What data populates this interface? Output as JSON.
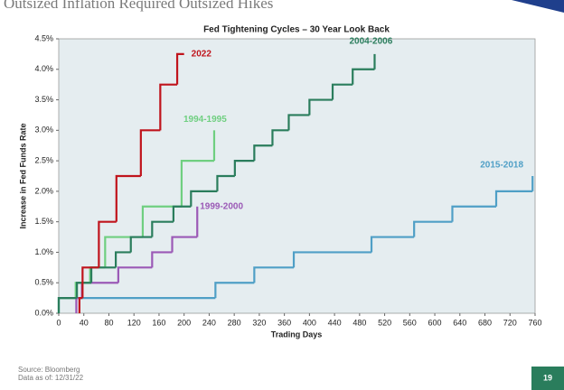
{
  "header": {
    "title": "Outsized Inflation Required Outsized Hikes"
  },
  "footer": {
    "source": "Source: Bloomberg",
    "date": "Data as of: 12/31/22",
    "page": "19"
  },
  "chart_data": {
    "type": "line",
    "step": true,
    "title": "Fed Tightening Cycles – 30 Year Look Back",
    "xlabel": "Trading Days",
    "ylabel": "Increase in Fed Funds Rate",
    "xlim": [
      0,
      760
    ],
    "xticks": [
      0,
      40,
      80,
      120,
      160,
      200,
      240,
      280,
      320,
      360,
      400,
      440,
      480,
      520,
      560,
      600,
      640,
      680,
      720,
      760
    ],
    "ylim": [
      0,
      4.5
    ],
    "yticks": [
      {
        "value": 0,
        "label": "0.0%"
      },
      {
        "value": 0.5,
        "label": "0.5%"
      },
      {
        "value": 1,
        "label": "1.0%"
      },
      {
        "value": 1.5,
        "label": "1.5%"
      },
      {
        "value": 2,
        "label": "2.0%"
      },
      {
        "value": 2.5,
        "label": "2.5%"
      },
      {
        "value": 3,
        "label": "3.0%"
      },
      {
        "value": 3.5,
        "label": "3.5%"
      },
      {
        "value": 4,
        "label": "4.0%"
      },
      {
        "value": 4.5,
        "label": "4.5%"
      }
    ],
    "grid": false,
    "series": [
      {
        "name": "2015-2018",
        "color": "#4f9fc6",
        "x": [
          0,
          250,
          312,
          375,
          499,
          567,
          628,
          698,
          756
        ],
        "values": [
          0.25,
          0.5,
          0.75,
          1.0,
          1.25,
          1.5,
          1.75,
          2.0,
          2.25
        ]
      },
      {
        "name": "1999-2000",
        "color": "#9b59b6",
        "x": [
          28,
          37,
          95,
          149,
          181,
          221
        ],
        "values": [
          0.25,
          0.5,
          0.75,
          1.0,
          1.25,
          1.75
        ]
      },
      {
        "name": "1994-1995",
        "color": "#6fcf80",
        "x": [
          0,
          27,
          50,
          74,
          134,
          196,
          248
        ],
        "values": [
          0.25,
          0.5,
          0.75,
          1.25,
          1.75,
          2.5,
          3.0
        ]
      },
      {
        "name": "2004-2006",
        "color": "#2a7d5c",
        "x": [
          0,
          29,
          52,
          91,
          115,
          149,
          183,
          211,
          253,
          281,
          312,
          341,
          367,
          400,
          437,
          469,
          504
        ],
        "values": [
          0.25,
          0.5,
          0.75,
          1.0,
          1.25,
          1.5,
          1.75,
          2.0,
          2.25,
          2.5,
          2.75,
          3.0,
          3.25,
          3.5,
          3.75,
          4.0,
          4.25
        ]
      },
      {
        "name": "2022",
        "color": "#c0141c",
        "x": [
          33,
          38,
          64,
          92,
          131,
          162,
          189,
          200
        ],
        "values": [
          0.25,
          0.75,
          1.5,
          2.25,
          3.0,
          3.75,
          4.25,
          4.25
        ]
      }
    ]
  }
}
